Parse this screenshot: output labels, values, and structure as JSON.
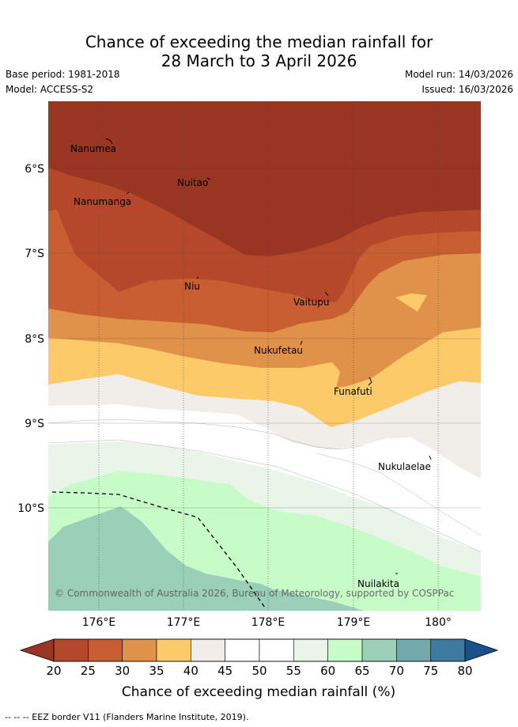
{
  "title": {
    "line1": "Chance of exceeding the median rainfall for",
    "line2": "28 March to 3 April 2026"
  },
  "meta": {
    "base_period": "Base period: 1981-2018",
    "model": "Model: ACCESS-S2",
    "model_run": "Model run: 14/03/2026",
    "issued": "Issued: 16/03/2026"
  },
  "axes": {
    "lat_labels": [
      "6°S",
      "7°S",
      "8°S",
      "9°S",
      "10°S"
    ],
    "lon_labels": [
      "176°E",
      "177°E",
      "178°E",
      "179°E",
      "180°"
    ]
  },
  "places": [
    "Nanumea",
    "Nuitao",
    "Nanumanga",
    "Niu",
    "Vaitupu",
    "Nukufetau",
    "Funafuti",
    "Nukulaelae",
    "Nuilakita"
  ],
  "copyright": "© Commonwealth of Australia 2026, Bureau of Meteorology, supported by COSPPac",
  "colorbar": {
    "ticks": [
      "20",
      "25",
      "30",
      "35",
      "40",
      "45",
      "50",
      "55",
      "60",
      "65",
      "70",
      "75",
      "80"
    ],
    "colors": [
      "#b5482a",
      "#c95f30",
      "#e0924a",
      "#fdca6a",
      "#f1ede8",
      "#ffffff",
      "#ffffff",
      "#e9f5e9",
      "#c7fbc8",
      "#9ccfb8",
      "#73a9aa",
      "#3e7aa0"
    ],
    "low_color": "#993522",
    "high_color": "#1b4f8e",
    "title": "Chance of exceeding median rainfall (%)"
  },
  "footer": "-- -- -- EEZ border V11 (Flanders Marine Institute, 2019).",
  "colors": {
    "deep_dry": "#993522",
    "dry1": "#b5482a",
    "dry2": "#c95f30",
    "dry3": "#e0924a",
    "dry4": "#fdca6a",
    "neutral": "#f1ede8",
    "wet1": "#e9f5e9",
    "wet2": "#c7fbc8",
    "wet3": "#9ccfb8"
  }
}
